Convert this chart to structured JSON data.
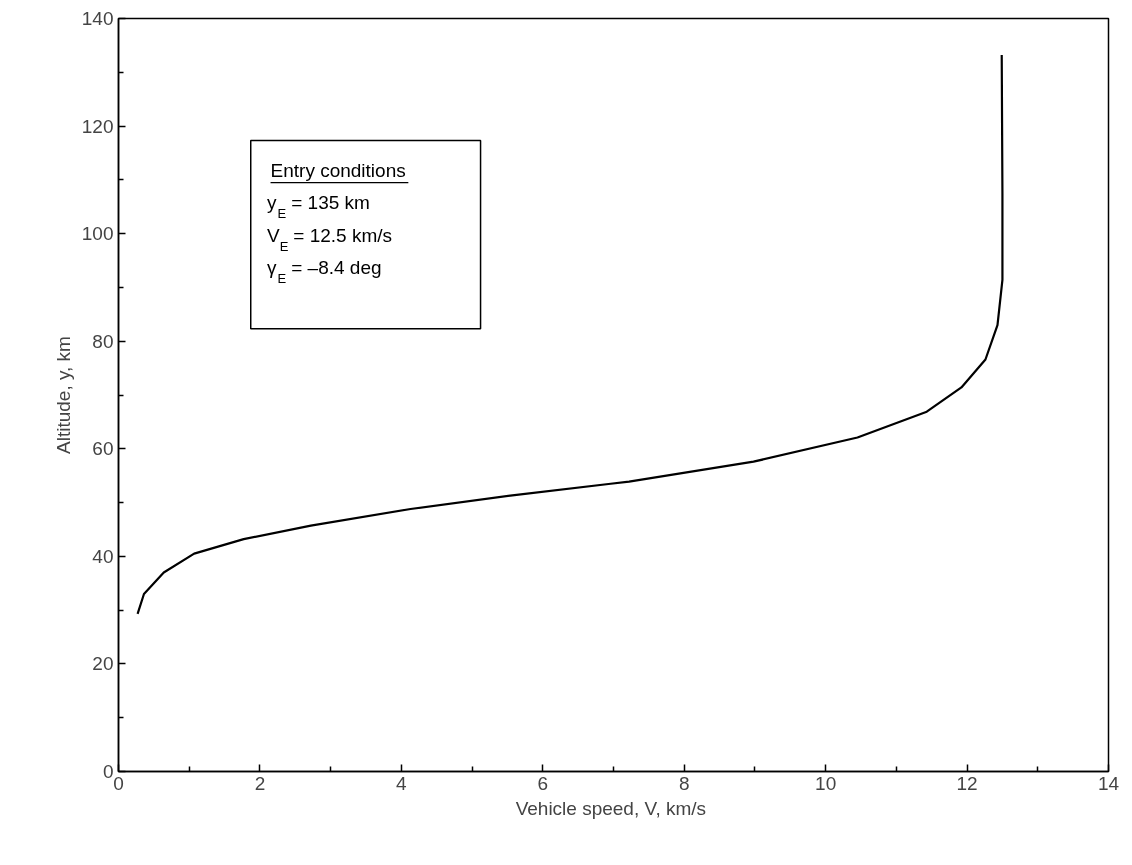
{
  "chart_data": {
    "type": "line",
    "xlabel": "Vehicle speed, V,  km/s",
    "ylabel": "Altitude, y, km",
    "xlim": [
      0,
      14
    ],
    "xticks": [
      0,
      2,
      4,
      6,
      8,
      10,
      12,
      14
    ],
    "ylim": [
      0,
      140
    ],
    "yticks": [
      0,
      20,
      40,
      60,
      80,
      100,
      120,
      140
    ],
    "grid": false,
    "marker": "none",
    "line_style": "solid",
    "annotations": [
      "Entry conditions",
      "y$_{E}$ = 135 km",
      "V$_{E}$ = 12.5 km/s",
      "γ$_{E}$ = –8.4 deg"
    ],
    "series": [
      {
        "color": "#000000",
        "x": [
          0.27,
          0.36,
          0.64,
          1.07,
          1.77,
          2.72,
          4.13,
          5.54,
          6.96,
          7.22,
          8.98,
          10.45,
          11.43,
          11.92,
          12.26,
          12.43,
          12.5,
          12.5,
          12.49
        ],
        "values": [
          29.3,
          33.0,
          37.0,
          40.5,
          43.2,
          45.7,
          48.8,
          51.3,
          53.5,
          53.9,
          57.6,
          62.1,
          66.9,
          71.4,
          76.6,
          83.0,
          91.4,
          107.4,
          133.2
        ]
      }
    ]
  }
}
